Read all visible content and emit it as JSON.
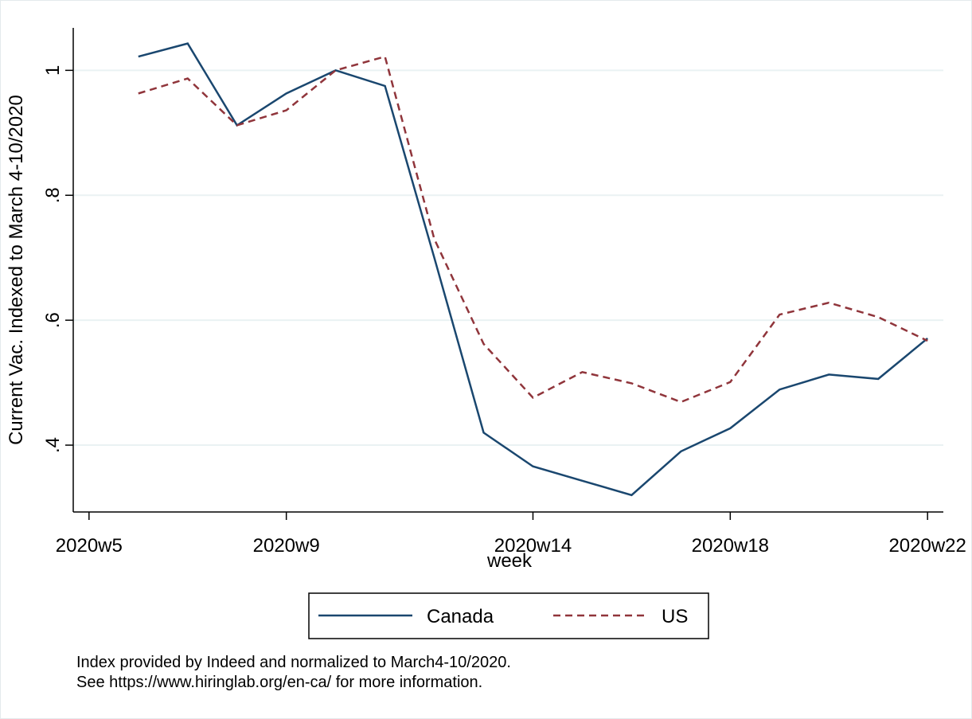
{
  "chart_data": {
    "type": "line",
    "x_label": "week",
    "y_label": "Current Vac. Indexed to March 4-10/2020",
    "x": [
      6,
      7,
      8,
      9,
      10,
      11,
      12,
      13,
      14,
      15,
      16,
      17,
      18,
      19,
      20,
      21,
      22
    ],
    "series": [
      {
        "name": "Canada",
        "color": "#1a476f",
        "dash": "solid",
        "values": [
          1.022,
          1.043,
          0.912,
          0.963,
          1.0,
          0.975,
          0.7,
          0.42,
          0.366,
          0.343,
          0.32,
          0.39,
          0.427,
          0.489,
          0.513,
          0.506,
          0.571
        ]
      },
      {
        "name": "US",
        "color": "#90353b",
        "dash": "dashed",
        "values": [
          0.963,
          0.987,
          0.912,
          0.936,
          1.0,
          1.022,
          0.73,
          0.562,
          0.476,
          0.517,
          0.499,
          0.469,
          0.501,
          0.609,
          0.628,
          0.605,
          0.567
        ]
      }
    ],
    "xlim": [
      4.68,
      22.32
    ],
    "xticks": [
      {
        "value": 5,
        "label": "2020w5"
      },
      {
        "value": 9,
        "label": "2020w9"
      },
      {
        "value": 14,
        "label": "2020w14"
      },
      {
        "value": 18,
        "label": "2020w18"
      },
      {
        "value": 22,
        "label": "2020w22"
      }
    ],
    "ylim": [
      0.293,
      1.068
    ],
    "yticks": [
      {
        "value": 0.4,
        "label": ".4"
      },
      {
        "value": 0.6,
        "label": ".6"
      },
      {
        "value": 0.8,
        "label": ".8"
      },
      1
    ],
    "grid": true,
    "legend": "bottom",
    "notes": [
      "Index provided by Indeed and normalized to March4-10/2020.",
      "See https://www.hiringlab.org/en-ca/ for more information."
    ]
  }
}
